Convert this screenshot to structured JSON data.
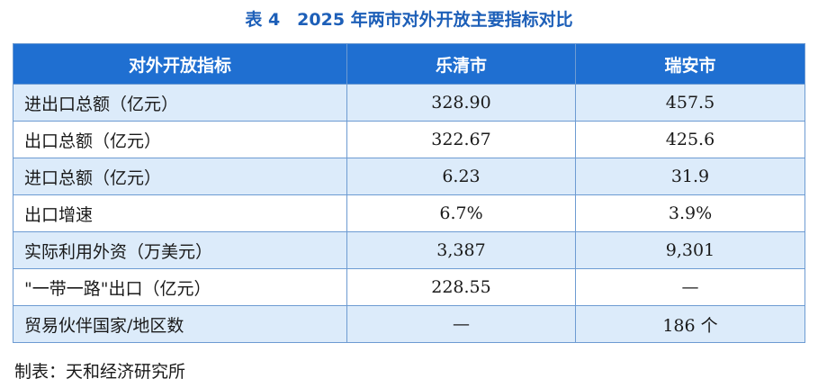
{
  "title": "表 4　2025 年两市对外开放主要指标对比",
  "table": {
    "headers": [
      "对外开放指标",
      "乐清市",
      "瑞安市"
    ],
    "rows": [
      {
        "label": "进出口总额（亿元）",
        "yueqing": "328.90",
        "ruian": "457.5"
      },
      {
        "label": "出口总额（亿元）",
        "yueqing": "322.67",
        "ruian": "425.6"
      },
      {
        "label": "进口总额（亿元）",
        "yueqing": "6.23",
        "ruian": "31.9"
      },
      {
        "label": "出口增速",
        "yueqing": "6.7%",
        "ruian": "3.9%"
      },
      {
        "label": "实际利用外资（万美元）",
        "yueqing": "3,387",
        "ruian": "9,301"
      },
      {
        "label": "\"一带一路\"出口（亿元）",
        "yueqing": "228.55",
        "ruian": "—"
      },
      {
        "label": "贸易伙伴国家/地区数",
        "yueqing": "—",
        "ruian": "186 个"
      }
    ]
  },
  "source": "制表：天和经济研究所"
}
